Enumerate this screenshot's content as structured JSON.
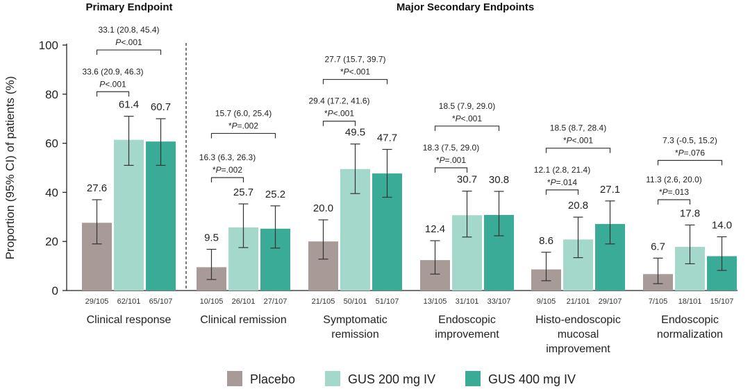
{
  "chart_data": {
    "type": "bar",
    "section_titles": [
      "Primary Endpoint",
      "Major Secondary Endpoints"
    ],
    "ylabel": "Proportion (95% CI) of patients (%)",
    "ylim": [
      0,
      100
    ],
    "yticks": [
      "0",
      "20",
      "40",
      "60",
      "80",
      "100"
    ],
    "series": [
      {
        "name": "Placebo",
        "color": "#a89a96"
      },
      {
        "name": "GUS 200 mg IV",
        "color": "#a3d8ca"
      },
      {
        "name": "GUS 400 mg IV",
        "color": "#3aab96"
      }
    ],
    "groups": [
      {
        "label": [
          "Clinical response"
        ],
        "bars": [
          {
            "value": 27.6,
            "value_label": "27.6",
            "ci": [
              19.0,
              37.0
            ],
            "n": "29/105"
          },
          {
            "value": 61.4,
            "value_label": "61.4",
            "ci": [
              51.0,
              71.0
            ],
            "n": "62/101"
          },
          {
            "value": 60.7,
            "value_label": "60.7",
            "ci": [
              51.0,
              70.0
            ],
            "n": "65/107"
          }
        ],
        "comparisons": [
          {
            "from": 0,
            "to": 2,
            "line1": "33.1 (20.8, 45.4)",
            "line2_prefix": "",
            "line2": "P<.001",
            "level": 98
          },
          {
            "from": 0,
            "to": 1,
            "line1": "33.6 (20.9, 46.3)",
            "line2_prefix": "",
            "line2": "P<.001",
            "level": 81
          }
        ]
      },
      {
        "label": [
          "Clinical remission"
        ],
        "bars": [
          {
            "value": 9.5,
            "value_label": "9.5",
            "ci": [
              4.5,
              16.8
            ],
            "n": "10/105"
          },
          {
            "value": 25.7,
            "value_label": "25.7",
            "ci": [
              17.5,
              35.3
            ],
            "n": "26/101"
          },
          {
            "value": 25.2,
            "value_label": "25.2",
            "ci": [
              17.3,
              34.5
            ],
            "n": "27/107"
          }
        ],
        "comparisons": [
          {
            "from": 0,
            "to": 2,
            "line1": "15.7 (6.0, 25.4)",
            "line2_prefix": "*",
            "line2": "P=.002",
            "level": 64
          },
          {
            "from": 0,
            "to": 1,
            "line1": "16.3 (6.3, 26.3)",
            "line2_prefix": "*",
            "line2": "P=.002",
            "level": 46
          }
        ]
      },
      {
        "label": [
          "Symptomatic",
          "remission"
        ],
        "bars": [
          {
            "value": 20.0,
            "value_label": "20.0",
            "ci": [
              12.8,
              28.8
            ],
            "n": "21/105"
          },
          {
            "value": 49.5,
            "value_label": "49.5",
            "ci": [
              39.5,
              59.7
            ],
            "n": "50/101"
          },
          {
            "value": 47.7,
            "value_label": "47.7",
            "ci": [
              38.0,
              57.5
            ],
            "n": "51/107"
          }
        ],
        "comparisons": [
          {
            "from": 0,
            "to": 2,
            "line1": "27.7 (15.7, 39.7)",
            "line2_prefix": "*",
            "line2": "P<.001",
            "level": 86
          },
          {
            "from": 0,
            "to": 1,
            "line1": "29.4 (17.2, 41.6)",
            "line2_prefix": "*",
            "line2": "P<.001",
            "level": 69
          }
        ]
      },
      {
        "label": [
          "Endoscopic",
          "improvement"
        ],
        "bars": [
          {
            "value": 12.4,
            "value_label": "12.4",
            "ci": [
              6.7,
              20.3
            ],
            "n": "13/105"
          },
          {
            "value": 30.7,
            "value_label": "30.7",
            "ci": [
              21.8,
              40.5
            ],
            "n": "31/101"
          },
          {
            "value": 30.8,
            "value_label": "30.8",
            "ci": [
              22.3,
              40.4
            ],
            "n": "33/107"
          }
        ],
        "comparisons": [
          {
            "from": 0,
            "to": 2,
            "line1": "18.5 (7.9, 29.0)",
            "line2_prefix": "*",
            "line2": "P<.001",
            "level": 67
          },
          {
            "from": 0,
            "to": 1,
            "line1": "18.3 (7.5, 29.0)",
            "line2_prefix": "*",
            "line2": "P=.001",
            "level": 50
          }
        ]
      },
      {
        "label": [
          "Histo-endoscopic",
          "mucosal",
          "improvement"
        ],
        "bars": [
          {
            "value": 8.6,
            "value_label": "8.6",
            "ci": [
              4.0,
              15.6
            ],
            "n": "9/105"
          },
          {
            "value": 20.8,
            "value_label": "20.8",
            "ci": [
              13.4,
              29.9
            ],
            "n": "21/101"
          },
          {
            "value": 27.1,
            "value_label": "27.1",
            "ci": [
              19.0,
              36.5
            ],
            "n": "29/107"
          }
        ],
        "comparisons": [
          {
            "from": 0,
            "to": 2,
            "line1": "18.5 (8.7, 28.4)",
            "line2_prefix": "*",
            "line2": "P<.001",
            "level": 58
          },
          {
            "from": 0,
            "to": 1,
            "line1": "12.1 (2.8, 21.4)",
            "line2_prefix": "*",
            "line2": "P=.014",
            "level": 41
          }
        ]
      },
      {
        "label": [
          "Endoscopic",
          "normalization"
        ],
        "bars": [
          {
            "value": 6.7,
            "value_label": "6.7",
            "ci": [
              2.8,
              13.2
            ],
            "n": "7/105"
          },
          {
            "value": 17.8,
            "value_label": "17.8",
            "ci": [
              10.9,
              26.7
            ],
            "n": "18/101"
          },
          {
            "value": 14.0,
            "value_label": "14.0",
            "ci": [
              8.2,
              21.9
            ],
            "n": "15/107"
          }
        ],
        "comparisons": [
          {
            "from": 0,
            "to": 2,
            "line1": "7.3 (-0.5, 15.2)",
            "line2_prefix": "*",
            "line2": "P=.076",
            "level": 53
          },
          {
            "from": 0,
            "to": 1,
            "line1": "11.3 (2.6, 20.0)",
            "line2_prefix": "*",
            "line2": "P=.013",
            "level": 37
          }
        ]
      }
    ],
    "legend_position": "bottom"
  }
}
